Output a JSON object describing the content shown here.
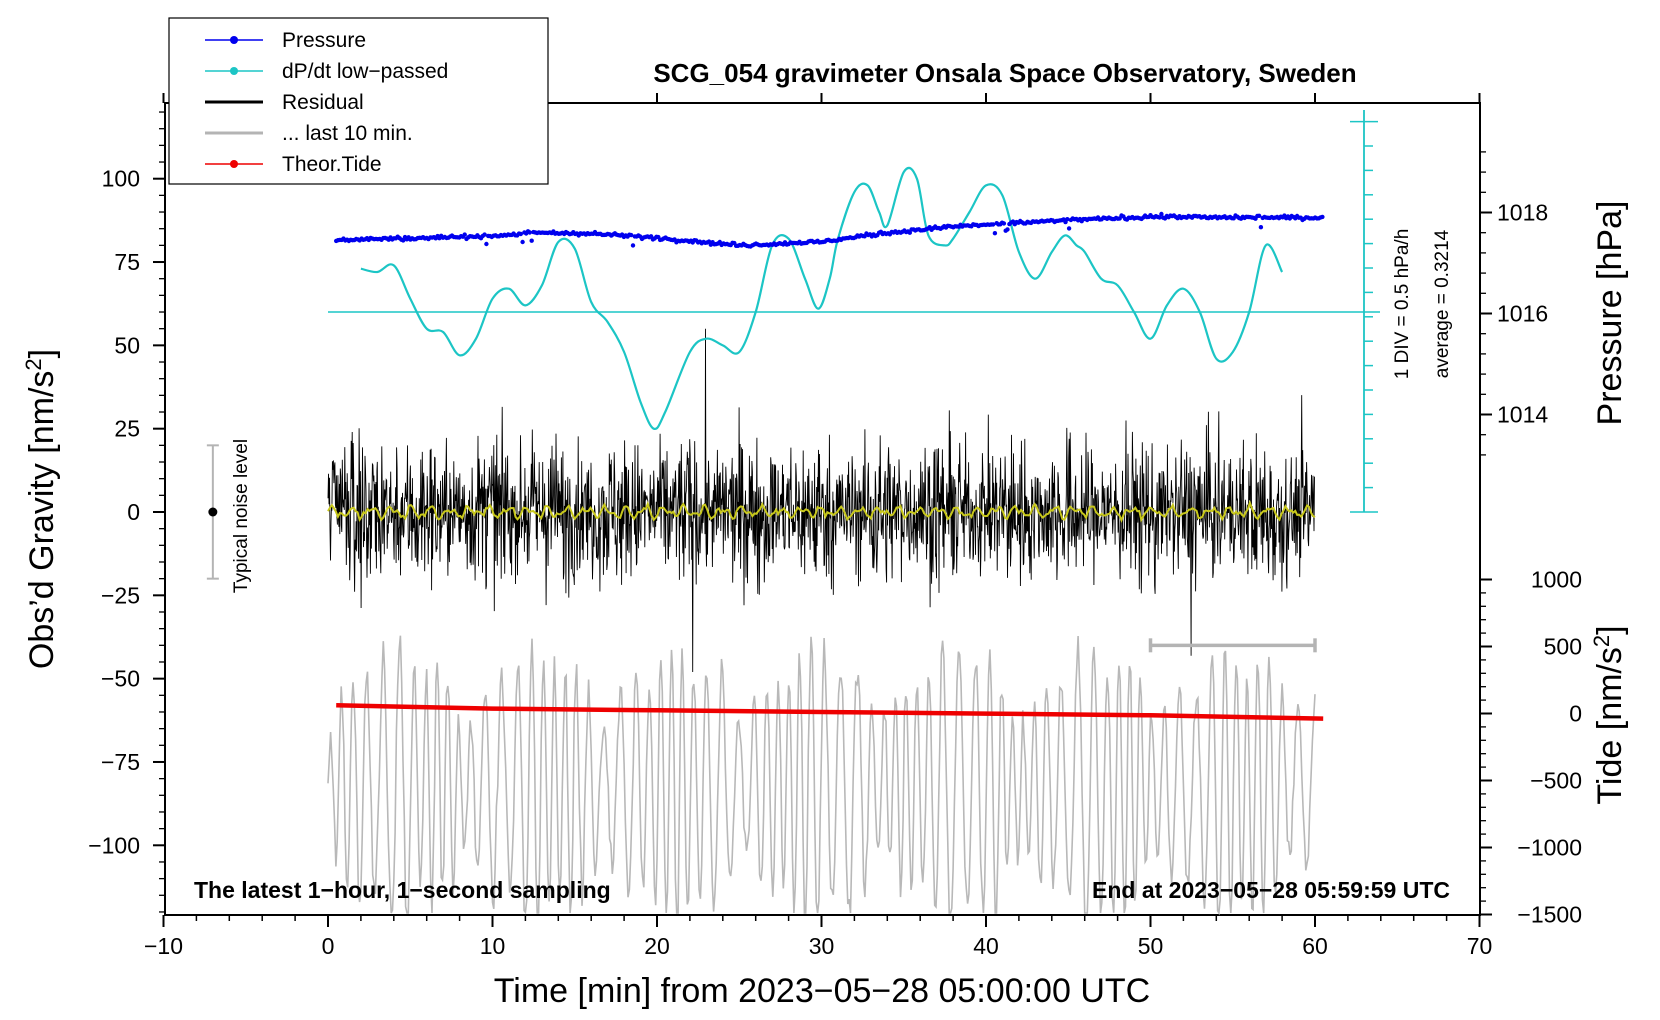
{
  "chart_data": {
    "type": "line",
    "title": "SCG_054 gravimeter Onsala Space Observatory, Sweden",
    "xlabel": "Time [min] from 2023−05−28 05:00:00 UTC",
    "ylabel_left": "Obs’d Gravity [nm/s",
    "ylabel_left_sup": "2",
    "ylabel_left_close": "]",
    "ylabel_right_pressure": "Pressure [hPa]",
    "ylabel_right_tide": "Tide [nm/s",
    "ylabel_right_tide_sup": "2",
    "ylabel_right_tide_close": "]",
    "xlim": [
      -10,
      70
    ],
    "ylim_left": [
      -120,
      120
    ],
    "x_ticks": [
      -10,
      0,
      10,
      20,
      30,
      40,
      50,
      60,
      70
    ],
    "x_tick_labels": [
      "−10",
      "0",
      "10",
      "20",
      "30",
      "40",
      "50",
      "60",
      "70"
    ],
    "y_ticks_left": [
      100,
      75,
      50,
      25,
      0,
      -25,
      -50,
      -75,
      -100
    ],
    "y_tick_labels_left": [
      "100",
      "75",
      "50",
      "25",
      "0",
      "−25",
      "−50",
      "−75",
      "−100"
    ],
    "pressure_ticks": [
      1018,
      1016,
      1014
    ],
    "pressure_tick_labels": [
      "1018",
      "1016",
      "1014"
    ],
    "tide_ticks": [
      1000,
      500,
      0,
      -500,
      -1000,
      -1500
    ],
    "tide_tick_labels": [
      "1000",
      "500",
      "0",
      "−500",
      "−1000",
      "−1500"
    ],
    "legend": [
      {
        "label": "Pressure",
        "color": "#0000ee",
        "marker": true
      },
      {
        "label": "dP/dt low−passed",
        "color": "#1cc5c5",
        "marker": true
      },
      {
        "label": "Residual",
        "color": "#000000",
        "marker": false
      },
      {
        "label": "... last 10 min.",
        "color": "#b4b4b4",
        "marker": false
      },
      {
        "label": "Theor.Tide",
        "color": "#ee0000",
        "marker": true
      }
    ],
    "annotations": {
      "noise_label": "Typical noise level",
      "div_label": "1 DIV = 0.5 hPa/h",
      "average_label": "average = 0.3214",
      "bottom_left_note": "The latest 1−hour, 1−second sampling",
      "bottom_right_note": "End at 2023−05−28 05:59:59 UTC"
    },
    "noise_level": {
      "x": -7,
      "center": 0,
      "half_range": 20
    },
    "last_10min_bracket": {
      "x_start": 50,
      "x_end": 60,
      "y": -40
    },
    "dpdt_zero_line": 60,
    "series": [
      {
        "name": "Pressure",
        "units": "hPa",
        "points": [
          [
            0.5,
            1017.46
          ],
          [
            5,
            1017.49
          ],
          [
            10,
            1017.54
          ],
          [
            13,
            1017.6
          ],
          [
            16,
            1017.58
          ],
          [
            20,
            1017.5
          ],
          [
            25,
            1017.35
          ],
          [
            30,
            1017.42
          ],
          [
            34,
            1017.6
          ],
          [
            38,
            1017.72
          ],
          [
            42,
            1017.8
          ],
          [
            46,
            1017.86
          ],
          [
            50,
            1017.92
          ],
          [
            55,
            1017.9
          ],
          [
            60.5,
            1017.9
          ]
        ]
      },
      {
        "name": "dP/dt low−passed",
        "units": "gravity-axis",
        "points": [
          [
            2,
            73
          ],
          [
            3,
            72
          ],
          [
            4,
            74
          ],
          [
            5,
            64
          ],
          [
            6,
            55
          ],
          [
            7,
            54
          ],
          [
            8,
            47
          ],
          [
            9,
            52
          ],
          [
            10,
            64
          ],
          [
            11,
            67
          ],
          [
            12,
            62
          ],
          [
            13,
            68
          ],
          [
            14,
            81
          ],
          [
            15,
            79
          ],
          [
            16,
            63
          ],
          [
            17,
            57
          ],
          [
            18,
            48
          ],
          [
            19,
            33
          ],
          [
            19.8,
            25
          ],
          [
            20.5,
            30
          ],
          [
            22,
            48
          ],
          [
            23,
            52
          ],
          [
            24,
            50
          ],
          [
            25,
            48
          ],
          [
            26,
            60
          ],
          [
            27,
            80
          ],
          [
            28,
            82
          ],
          [
            29,
            70
          ],
          [
            29.8,
            61
          ],
          [
            30.5,
            70
          ],
          [
            31,
            82
          ],
          [
            32,
            96
          ],
          [
            32.8,
            98
          ],
          [
            33.5,
            90
          ],
          [
            34,
            86
          ],
          [
            35,
            102
          ],
          [
            35.8,
            100
          ],
          [
            36.5,
            83
          ],
          [
            37.5,
            80
          ],
          [
            38,
            82
          ],
          [
            39,
            90
          ],
          [
            40,
            98
          ],
          [
            41,
            95
          ],
          [
            42,
            78
          ],
          [
            43,
            70
          ],
          [
            44,
            78
          ],
          [
            44.8,
            83
          ],
          [
            45.5,
            80
          ],
          [
            46,
            78
          ],
          [
            47,
            70
          ],
          [
            48,
            68
          ],
          [
            49,
            60
          ],
          [
            50,
            52
          ],
          [
            51,
            62
          ],
          [
            52,
            67
          ],
          [
            53,
            60
          ],
          [
            54,
            46
          ],
          [
            55,
            48
          ],
          [
            56,
            60
          ],
          [
            57,
            80
          ],
          [
            58,
            72
          ]
        ]
      },
      {
        "name": "Residual",
        "units": "nm/s2",
        "x_range": [
          0,
          60
        ],
        "envelope": 40
      },
      {
        "name": "... last 10 min.",
        "units": "nm/s2 (offset)",
        "x_range": [
          0,
          60
        ],
        "center": -82
      },
      {
        "name": "Theor.Tide",
        "units": "nm/s2",
        "points": [
          [
            0.5,
            -58
          ],
          [
            10,
            -59
          ],
          [
            20,
            -59.5
          ],
          [
            30,
            -60
          ],
          [
            40,
            -60.5
          ],
          [
            50,
            -61
          ],
          [
            60.5,
            -62
          ]
        ]
      }
    ]
  }
}
